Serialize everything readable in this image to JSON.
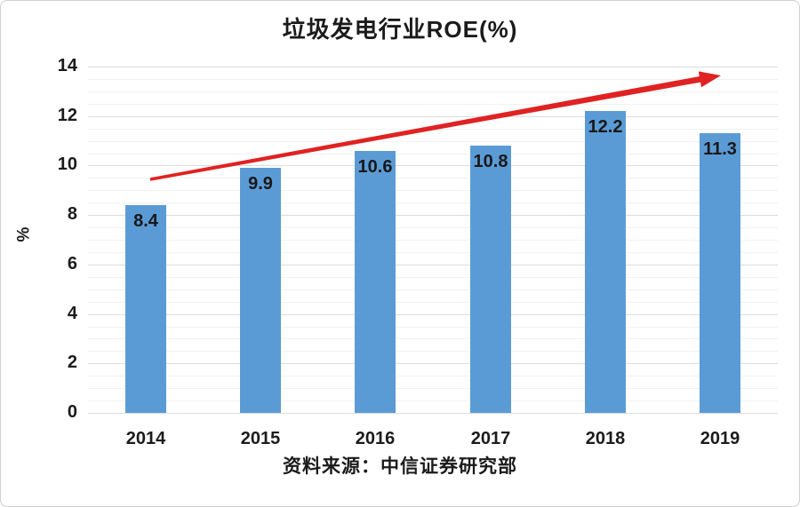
{
  "chart_data": {
    "type": "bar",
    "title": "垃圾发电行业ROE(%)",
    "categories": [
      "2014",
      "2015",
      "2016",
      "2017",
      "2018",
      "2019"
    ],
    "values": [
      8.4,
      9.9,
      10.6,
      10.8,
      12.2,
      11.3
    ],
    "xlabel": "",
    "ylabel": "%",
    "ylim": [
      0,
      14
    ],
    "ytick_step": 2,
    "minor_grid_step": 0.5,
    "grid": true,
    "legend": "none",
    "bar_color": "#5B9BD5",
    "value_labels_position": "inside-top",
    "annotations": [
      {
        "type": "arrow",
        "meaning": "upward-trend",
        "color": "#E02222"
      }
    ]
  },
  "source": {
    "text": "资料来源：中信证券研究部"
  }
}
